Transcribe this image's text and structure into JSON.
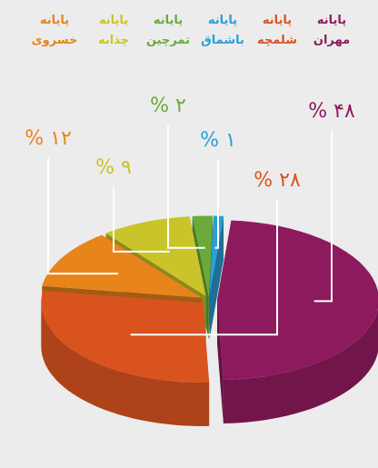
{
  "chart_data": {
    "type": "pie3d",
    "categories": [
      "پایانه مهران",
      "پایانه شلمچه",
      "پایانه خسروی",
      "پایانه چذابه",
      "پایانه تمرچین",
      "پایانه باشماق"
    ],
    "values": [
      48,
      28,
      12,
      9,
      2,
      1
    ],
    "value_labels": [
      "% ۴۸",
      "% ۲۸",
      "% ۱۲",
      "% ۹",
      "% ۲",
      "% ۱"
    ],
    "colors": [
      "#8e1a5e",
      "#d9531e",
      "#e8841c",
      "#c9c42a",
      "#6aaa3a",
      "#2a9fd6"
    ]
  }
}
